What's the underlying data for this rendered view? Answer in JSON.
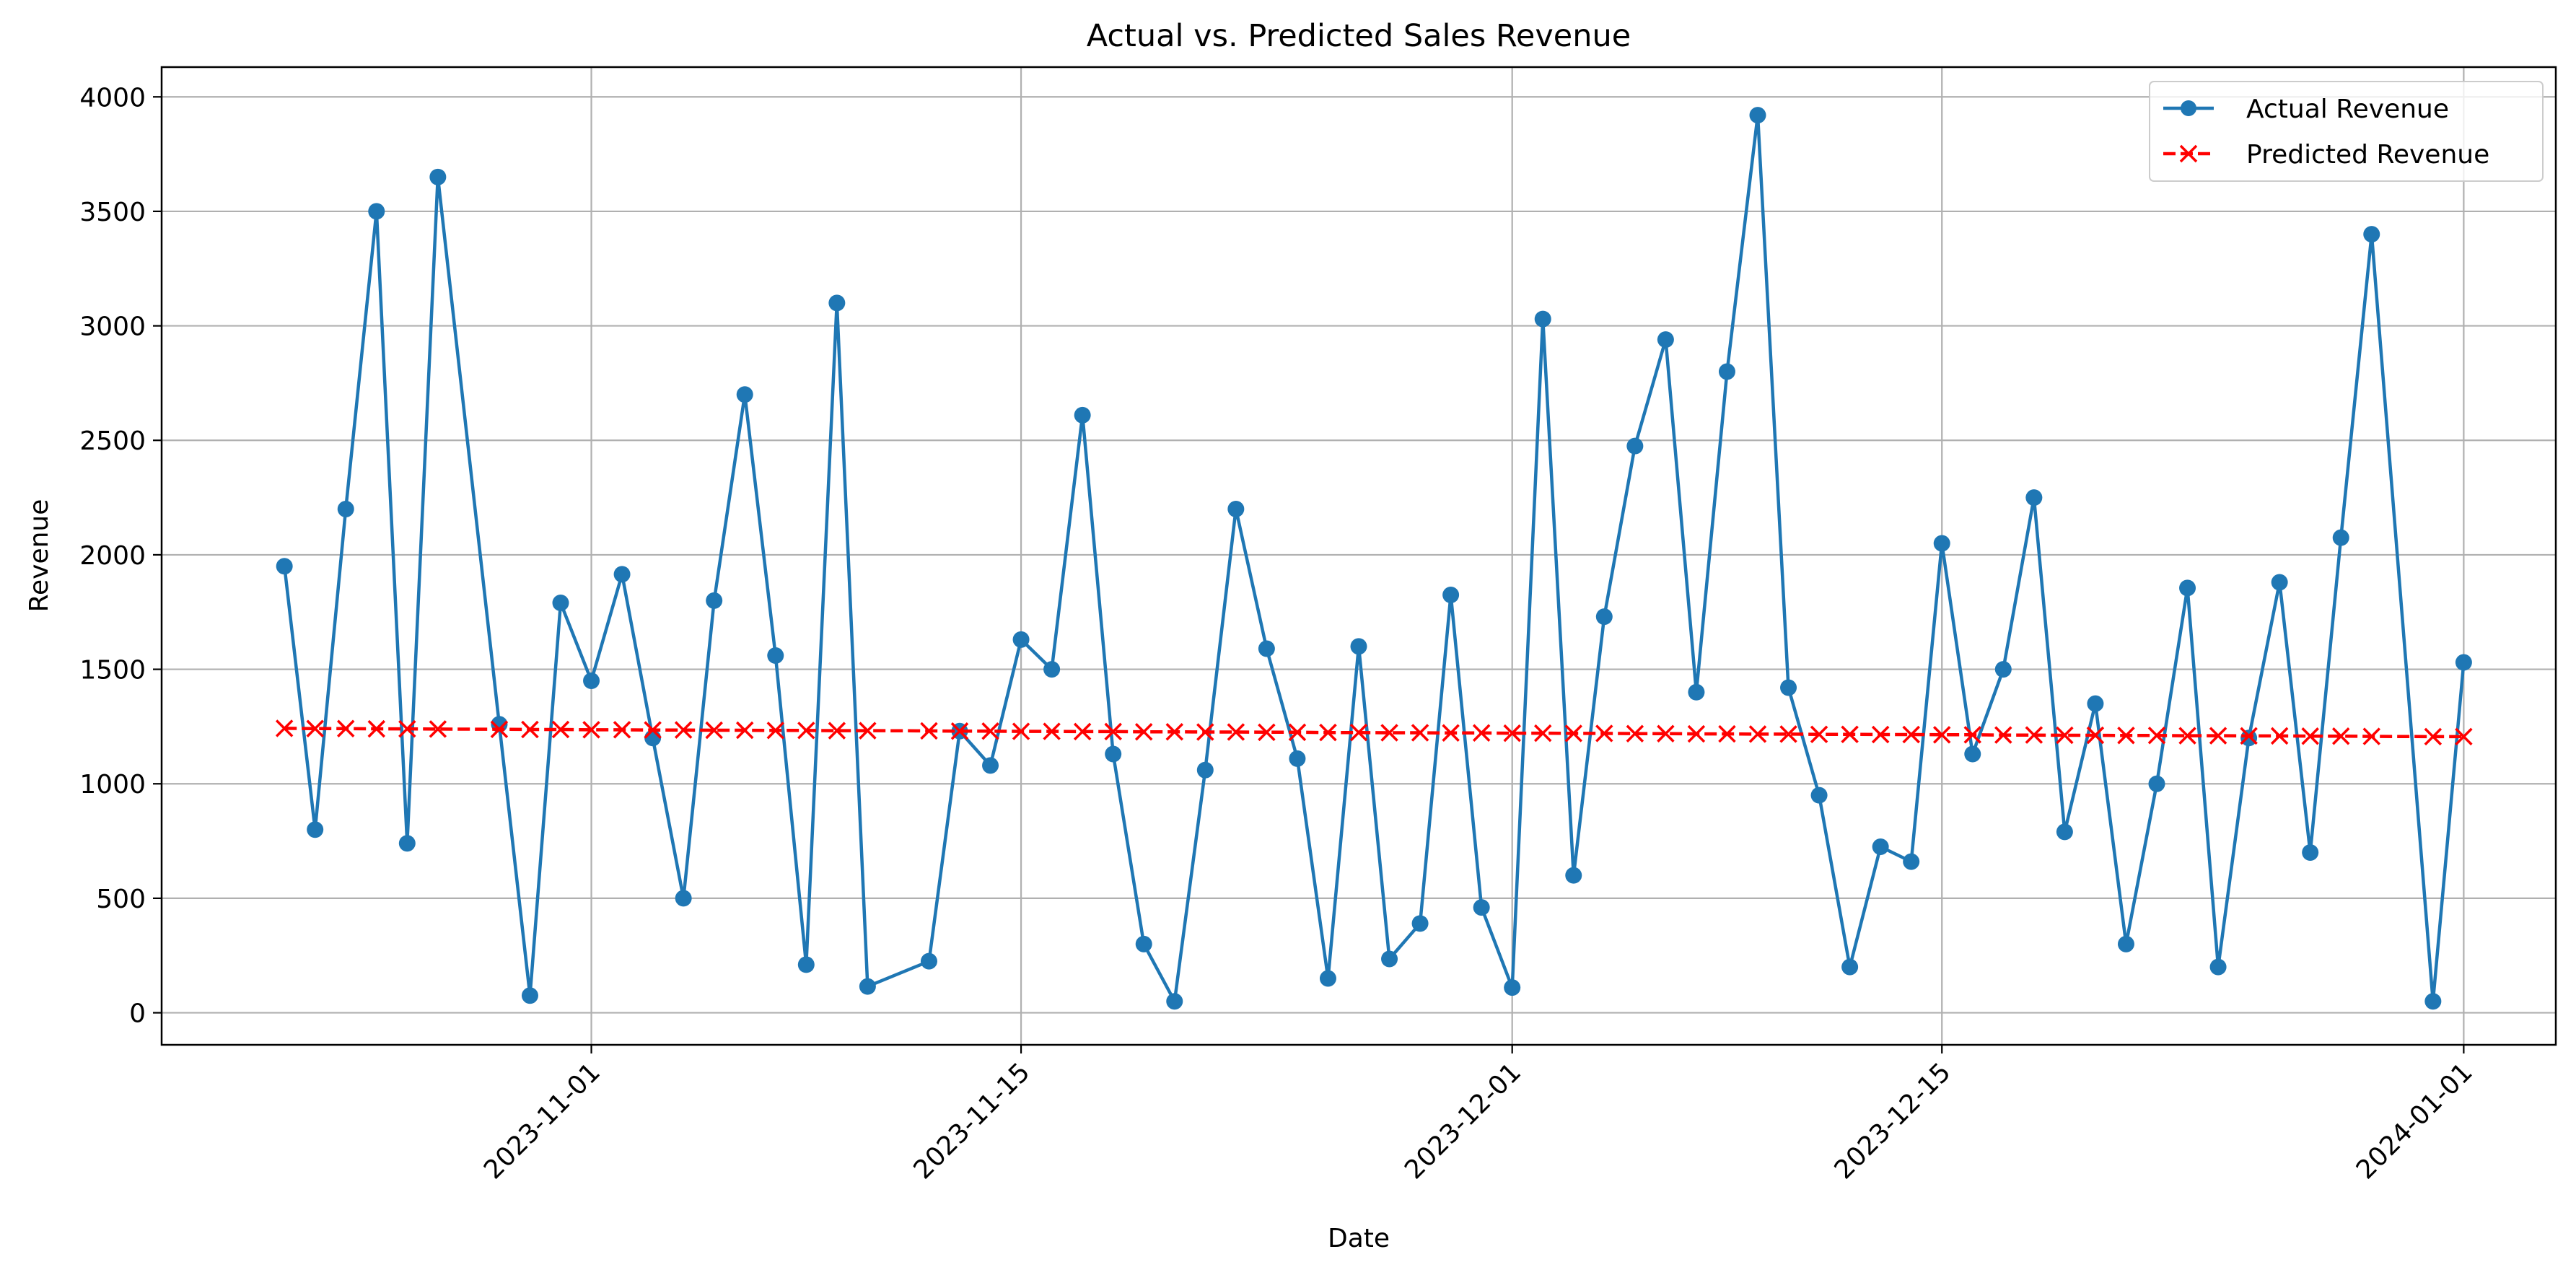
{
  "chart_data": {
    "type": "line",
    "title": "Actual vs. Predicted Sales Revenue",
    "xlabel": "Date",
    "ylabel": "Revenue",
    "ylim": [
      -140,
      4130
    ],
    "xlim": [
      "2023-10-18",
      "2024-01-04"
    ],
    "x_tick_labels": [
      "2023-11-01",
      "2023-11-15",
      "2023-12-01",
      "2023-12-15",
      "2024-01-01"
    ],
    "y_tick_labels": [
      "0",
      "500",
      "1000",
      "1500",
      "2000",
      "2500",
      "3000",
      "3500",
      "4000"
    ],
    "grid": true,
    "legend_position": "top-right",
    "series": [
      {
        "name": "Actual Revenue",
        "color": "#1f77b4",
        "marker": "circle",
        "linestyle": "solid",
        "x": [
          "2023-10-22",
          "2023-10-23",
          "2023-10-24",
          "2023-10-25",
          "2023-10-26",
          "2023-10-27",
          "2023-10-29",
          "2023-10-30",
          "2023-10-31",
          "2023-11-01",
          "2023-11-02",
          "2023-11-03",
          "2023-11-04",
          "2023-11-05",
          "2023-11-06",
          "2023-11-07",
          "2023-11-08",
          "2023-11-09",
          "2023-11-10",
          "2023-11-12",
          "2023-11-13",
          "2023-11-14",
          "2023-11-15",
          "2023-11-16",
          "2023-11-17",
          "2023-11-18",
          "2023-11-19",
          "2023-11-20",
          "2023-11-21",
          "2023-11-22",
          "2023-11-23",
          "2023-11-24",
          "2023-11-25",
          "2023-11-26",
          "2023-11-27",
          "2023-11-28",
          "2023-11-29",
          "2023-11-30",
          "2023-12-01",
          "2023-12-02",
          "2023-12-03",
          "2023-12-04",
          "2023-12-05",
          "2023-12-06",
          "2023-12-07",
          "2023-12-08",
          "2023-12-09",
          "2023-12-10",
          "2023-12-11",
          "2023-12-12",
          "2023-12-13",
          "2023-12-14",
          "2023-12-15",
          "2023-12-16",
          "2023-12-17",
          "2023-12-18",
          "2023-12-19",
          "2023-12-20",
          "2023-12-21",
          "2023-12-22",
          "2023-12-23",
          "2023-12-24",
          "2023-12-25",
          "2023-12-26",
          "2023-12-27",
          "2023-12-28",
          "2023-12-29",
          "2023-12-31",
          "2024-01-01"
        ],
        "values": [
          1950,
          800,
          2200,
          3500,
          740,
          3650,
          1260,
          75,
          1790,
          1450,
          1915,
          1200,
          500,
          1800,
          2700,
          1560,
          210,
          3100,
          115,
          225,
          1230,
          1080,
          1630,
          1500,
          2610,
          1130,
          300,
          50,
          1060,
          2200,
          1590,
          1110,
          150,
          1600,
          235,
          390,
          1825,
          460,
          110,
          3030,
          600,
          1730,
          2475,
          2940,
          1400,
          2800,
          3920,
          1420,
          950,
          200,
          725,
          660,
          2050,
          1130,
          1500,
          2250,
          790,
          1350,
          300,
          1000,
          1855,
          200,
          1200,
          1880,
          700,
          2075,
          3400,
          50,
          1530
        ]
      },
      {
        "name": "Predicted Revenue",
        "color": "#ff0000",
        "marker": "x",
        "linestyle": "dashed",
        "x": [
          "2023-10-22",
          "2023-10-23",
          "2023-10-24",
          "2023-10-25",
          "2023-10-26",
          "2023-10-27",
          "2023-10-29",
          "2023-10-30",
          "2023-10-31",
          "2023-11-01",
          "2023-11-02",
          "2023-11-03",
          "2023-11-04",
          "2023-11-05",
          "2023-11-06",
          "2023-11-07",
          "2023-11-08",
          "2023-11-09",
          "2023-11-10",
          "2023-11-12",
          "2023-11-13",
          "2023-11-14",
          "2023-11-15",
          "2023-11-16",
          "2023-11-17",
          "2023-11-18",
          "2023-11-19",
          "2023-11-20",
          "2023-11-21",
          "2023-11-22",
          "2023-11-23",
          "2023-11-24",
          "2023-11-25",
          "2023-11-26",
          "2023-11-27",
          "2023-11-28",
          "2023-11-29",
          "2023-11-30",
          "2023-12-01",
          "2023-12-02",
          "2023-12-03",
          "2023-12-04",
          "2023-12-05",
          "2023-12-06",
          "2023-12-07",
          "2023-12-08",
          "2023-12-09",
          "2023-12-10",
          "2023-12-11",
          "2023-12-12",
          "2023-12-13",
          "2023-12-14",
          "2023-12-15",
          "2023-12-16",
          "2023-12-17",
          "2023-12-18",
          "2023-12-19",
          "2023-12-20",
          "2023-12-21",
          "2023-12-22",
          "2023-12-23",
          "2023-12-24",
          "2023-12-25",
          "2023-12-26",
          "2023-12-27",
          "2023-12-28",
          "2023-12-29",
          "2023-12-31",
          "2024-01-01"
        ],
        "values": [
          1242,
          1241,
          1241,
          1240,
          1240,
          1239,
          1238,
          1237,
          1237,
          1236,
          1236,
          1235,
          1235,
          1234,
          1234,
          1233,
          1233,
          1232,
          1232,
          1231,
          1230,
          1230,
          1229,
          1229,
          1228,
          1228,
          1227,
          1227,
          1226,
          1226,
          1225,
          1225,
          1224,
          1224,
          1223,
          1223,
          1222,
          1222,
          1221,
          1221,
          1220,
          1220,
          1219,
          1219,
          1218,
          1218,
          1217,
          1217,
          1216,
          1216,
          1215,
          1215,
          1214,
          1214,
          1213,
          1213,
          1212,
          1212,
          1211,
          1211,
          1210,
          1210,
          1209,
          1209,
          1208,
          1208,
          1207,
          1206,
          1206
        ]
      }
    ]
  }
}
